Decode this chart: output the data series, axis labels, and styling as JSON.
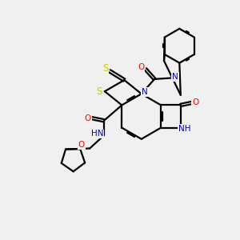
{
  "background_color": "#f0f0f0",
  "bond_width": 1.6,
  "fig_width": 3.0,
  "fig_height": 3.0,
  "dpi": 100,
  "atom_colors": {
    "N": "#0000cc",
    "O": "#ff0000",
    "S": "#cccc00",
    "H": "#555555"
  },
  "font_size": 7.5
}
